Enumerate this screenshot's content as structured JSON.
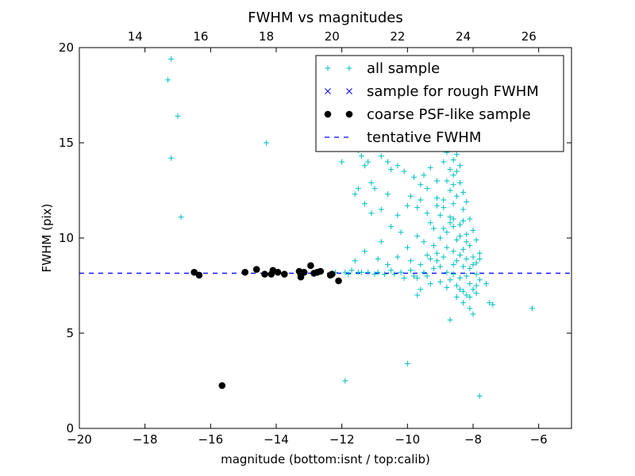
{
  "chart_data": {
    "type": "scatter",
    "title": "FWHM vs magnitudes",
    "xlabel": "magnitude (bottom:isnt / top:calib)",
    "ylabel": "FWHM (pix)",
    "xlim": [
      -20,
      -5
    ],
    "ylim": [
      0,
      20
    ],
    "x_ticks": [
      -20,
      -18,
      -16,
      -14,
      -12,
      -10,
      -8,
      -6
    ],
    "x_tick_labels": [
      "−20",
      "−18",
      "−16",
      "−14",
      "−12",
      "−10",
      "−8",
      "−6"
    ],
    "y_ticks": [
      0,
      5,
      10,
      15,
      20
    ],
    "y_tick_labels": [
      "0",
      "5",
      "10",
      "15",
      "20"
    ],
    "top_axis": {
      "xlim": [
        12.3,
        27.3
      ],
      "ticks": [
        14,
        16,
        18,
        20,
        22,
        24,
        26
      ],
      "tick_labels": [
        "14",
        "16",
        "18",
        "20",
        "22",
        "24",
        "26"
      ]
    },
    "grid": false,
    "legend_position": "top-right",
    "colors": {
      "all_sample": "#00bfbf",
      "rough_sample": "#0000ff",
      "coarse_sample": "#000000",
      "tentative_line": "#0000ff"
    },
    "tentative_fwhm": 8.15,
    "series": [
      {
        "name": "all sample",
        "marker": "plus",
        "points": [
          [
            -17.2,
            19.4
          ],
          [
            -17.3,
            18.3
          ],
          [
            -17.0,
            16.4
          ],
          [
            -17.2,
            14.2
          ],
          [
            -16.9,
            11.1
          ],
          [
            -14.3,
            15.0
          ],
          [
            -11.9,
            2.5
          ],
          [
            -10.0,
            3.4
          ],
          [
            -7.8,
            1.7
          ],
          [
            -6.2,
            6.3
          ],
          [
            -7.4,
            6.5
          ],
          [
            -7.5,
            6.6
          ],
          [
            -7.6,
            7.6
          ],
          [
            -12.0,
            14.0
          ],
          [
            -11.5,
            14.6
          ],
          [
            -11.4,
            14.3
          ],
          [
            -11.3,
            13.8
          ],
          [
            -11.2,
            14.0
          ],
          [
            -11.1,
            12.9
          ],
          [
            -11.0,
            12.6
          ],
          [
            -10.8,
            14.3
          ],
          [
            -10.6,
            14.0
          ],
          [
            -10.5,
            13.6
          ],
          [
            -10.3,
            13.8
          ],
          [
            -10.1,
            13.5
          ],
          [
            -9.8,
            13.2
          ],
          [
            -9.6,
            12.8
          ],
          [
            -11.6,
            12.3
          ],
          [
            -11.5,
            12.6
          ],
          [
            -11.3,
            11.8
          ],
          [
            -11.1,
            11.3
          ],
          [
            -10.8,
            11.5
          ],
          [
            -10.6,
            12.3
          ],
          [
            -10.3,
            11.2
          ],
          [
            -10.0,
            11.7
          ],
          [
            -10.2,
            10.3
          ],
          [
            -10.5,
            10.6
          ],
          [
            -10.8,
            9.8
          ],
          [
            -11.3,
            9.3
          ],
          [
            -10.9,
            8.9
          ],
          [
            -10.6,
            8.6
          ],
          [
            -10.3,
            9.0
          ],
          [
            -10.0,
            9.5
          ],
          [
            -9.9,
            8.8
          ],
          [
            -11.6,
            8.8
          ],
          [
            -11.7,
            8.3
          ],
          [
            -11.5,
            8.2
          ],
          [
            -11.2,
            8.2
          ],
          [
            -10.9,
            8.2
          ],
          [
            -10.5,
            8.3
          ],
          [
            -10.2,
            8.2
          ],
          [
            -9.8,
            8.0
          ],
          [
            -9.5,
            8.2
          ],
          [
            -9.6,
            7.3
          ],
          [
            -9.7,
            7.0
          ],
          [
            -9.8,
            15.2
          ],
          [
            -9.5,
            15.9
          ],
          [
            -9.2,
            16.7
          ],
          [
            -9.0,
            15.1
          ],
          [
            -8.7,
            15.2
          ],
          [
            -8.5,
            14.4
          ],
          [
            -9.6,
            12.0
          ],
          [
            -9.4,
            11.3
          ],
          [
            -9.3,
            10.8
          ],
          [
            -9.7,
            10.1
          ],
          [
            -9.5,
            9.8
          ],
          [
            -9.2,
            9.6
          ],
          [
            -9.0,
            11.2
          ],
          [
            -8.9,
            12.0
          ],
          [
            -8.8,
            10.3
          ],
          [
            -8.7,
            12.5
          ],
          [
            -8.6,
            11.0
          ],
          [
            -8.5,
            9.9
          ],
          [
            -8.4,
            10.7
          ],
          [
            -8.3,
            11.5
          ],
          [
            -8.2,
            10.2
          ],
          [
            -8.1,
            9.6
          ],
          [
            -8.0,
            9.0
          ],
          [
            -7.9,
            8.7
          ],
          [
            -9.1,
            9.2
          ],
          [
            -9.0,
            8.5
          ],
          [
            -8.9,
            9.0
          ],
          [
            -8.8,
            8.2
          ],
          [
            -8.7,
            7.8
          ],
          [
            -8.6,
            8.6
          ],
          [
            -8.5,
            7.5
          ],
          [
            -8.4,
            7.9
          ],
          [
            -8.3,
            7.2
          ],
          [
            -8.2,
            7.0
          ],
          [
            -8.1,
            7.6
          ],
          [
            -8.0,
            7.3
          ],
          [
            -7.9,
            7.1
          ],
          [
            -7.8,
            7.8
          ],
          [
            -8.0,
            6.0
          ],
          [
            -8.1,
            6.3
          ],
          [
            -8.3,
            6.6
          ],
          [
            -8.5,
            6.9
          ],
          [
            -8.7,
            5.7
          ],
          [
            -9.0,
            7.7
          ],
          [
            -9.3,
            7.6
          ],
          [
            -9.6,
            8.6
          ],
          [
            -9.4,
            9.1
          ],
          [
            -9.2,
            10.5
          ],
          [
            -8.8,
            13.0
          ],
          [
            -8.7,
            13.6
          ],
          [
            -8.6,
            13.3
          ],
          [
            -8.6,
            12.8
          ],
          [
            -8.5,
            12.2
          ],
          [
            -8.4,
            12.9
          ],
          [
            -8.3,
            12.4
          ],
          [
            -8.2,
            11.9
          ],
          [
            -8.1,
            11.0
          ],
          [
            -8.0,
            10.4
          ],
          [
            -7.9,
            9.9
          ],
          [
            -7.8,
            9.2
          ],
          [
            -9.5,
            13.3
          ],
          [
            -9.3,
            13.7
          ],
          [
            -9.1,
            13.0
          ],
          [
            -8.9,
            14.0
          ],
          [
            -8.8,
            14.5
          ],
          [
            -8.6,
            14.1
          ],
          [
            -9.9,
            12.2
          ],
          [
            -9.7,
            11.6
          ],
          [
            -9.4,
            12.6
          ],
          [
            -9.1,
            12.1
          ],
          [
            -8.9,
            11.6
          ],
          [
            -8.7,
            11.1
          ],
          [
            -8.6,
            10.6
          ],
          [
            -8.4,
            10.1
          ],
          [
            -8.3,
            9.4
          ],
          [
            -8.2,
            8.9
          ],
          [
            -8.1,
            8.4
          ],
          [
            -7.9,
            8.1
          ],
          [
            -9.0,
            10.0
          ],
          [
            -8.8,
            9.5
          ],
          [
            -8.6,
            9.3
          ],
          [
            -8.5,
            8.8
          ],
          [
            -8.3,
            8.5
          ],
          [
            -8.2,
            8.0
          ],
          [
            -9.2,
            8.4
          ],
          [
            -9.4,
            8.0
          ],
          [
            -9.7,
            7.9
          ],
          [
            -9.9,
            8.3
          ],
          [
            -10.1,
            7.9
          ],
          [
            -10.4,
            8.1
          ],
          [
            -12.2,
            8.2
          ],
          [
            -11.9,
            8.2
          ],
          [
            -11.8,
            8.1
          ],
          [
            -11.4,
            8.2
          ],
          [
            -11.0,
            8.1
          ],
          [
            -10.7,
            8.1
          ],
          [
            -8.4,
            13.8
          ],
          [
            -8.5,
            13.5
          ],
          [
            -8.6,
            11.8
          ],
          [
            -8.7,
            10.8
          ],
          [
            -8.9,
            10.5
          ],
          [
            -9.1,
            11.7
          ],
          [
            -8.3,
            10.9
          ],
          [
            -8.2,
            9.8
          ],
          [
            -8.4,
            9.1
          ],
          [
            -8.6,
            8.1
          ],
          [
            -8.8,
            7.4
          ],
          [
            -8.0,
            8.6
          ],
          [
            -7.8,
            8.9
          ],
          [
            -7.9,
            7.5
          ],
          [
            -8.1,
            6.9
          ],
          [
            -8.4,
            7.3
          ],
          [
            -9.1,
            8.8
          ],
          [
            -9.3,
            8.9
          ]
        ]
      },
      {
        "name": "sample for rough FWHM",
        "marker": "x",
        "points": []
      },
      {
        "name": "coarse PSF-like sample",
        "marker": "dot",
        "points": [
          [
            -16.5,
            8.2
          ],
          [
            -16.35,
            8.05
          ],
          [
            -15.65,
            2.25
          ],
          [
            -14.95,
            8.2
          ],
          [
            -14.6,
            8.35
          ],
          [
            -14.35,
            8.1
          ],
          [
            -14.15,
            8.1
          ],
          [
            -14.1,
            8.3
          ],
          [
            -13.95,
            8.2
          ],
          [
            -13.75,
            8.1
          ],
          [
            -13.3,
            8.25
          ],
          [
            -13.25,
            8.05
          ],
          [
            -13.25,
            7.95
          ],
          [
            -13.15,
            8.2
          ],
          [
            -12.95,
            8.55
          ],
          [
            -12.85,
            8.15
          ],
          [
            -12.75,
            8.2
          ],
          [
            -12.65,
            8.25
          ],
          [
            -12.35,
            8.05
          ],
          [
            -12.3,
            8.1
          ],
          [
            -12.1,
            7.75
          ]
        ]
      }
    ],
    "legend": [
      {
        "label": "all sample",
        "marker": "plus"
      },
      {
        "label": "sample for rough FWHM",
        "marker": "x"
      },
      {
        "label": "coarse PSF-like sample",
        "marker": "dot"
      },
      {
        "label": "tentative FWHM",
        "marker": "dashed-line"
      }
    ]
  }
}
